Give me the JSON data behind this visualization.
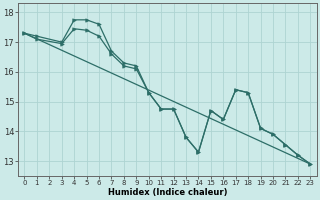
{
  "title": "",
  "xlabel": "Humidex (Indice chaleur)",
  "bg_color": "#cceae8",
  "grid_color": "#aed4d2",
  "line_color": "#2d6e68",
  "xlim": [
    -0.5,
    23.5
  ],
  "ylim": [
    12.5,
    18.3
  ],
  "yticks": [
    13,
    14,
    15,
    16,
    17,
    18
  ],
  "xticks": [
    0,
    1,
    2,
    3,
    4,
    5,
    6,
    7,
    8,
    9,
    10,
    11,
    12,
    13,
    14,
    15,
    16,
    17,
    18,
    19,
    20,
    21,
    22,
    23
  ],
  "line_top": [
    17.3,
    17.2,
    null,
    17.0,
    17.75,
    17.75,
    17.6,
    16.7,
    16.3,
    16.2,
    15.3,
    14.75,
    14.75,
    13.8,
    13.3,
    14.7,
    14.4,
    15.4,
    15.3,
    14.1,
    13.9,
    13.55,
    13.2,
    12.9
  ],
  "line_mid": [
    17.3,
    17.1,
    null,
    16.95,
    17.45,
    17.4,
    17.2,
    16.6,
    16.2,
    16.1,
    15.3,
    14.75,
    14.75,
    13.8,
    13.3,
    14.7,
    14.4,
    15.4,
    15.3,
    14.1,
    13.9,
    13.55,
    13.2,
    12.9
  ],
  "trend_x": [
    0,
    23
  ],
  "trend_y": [
    17.3,
    12.9
  ]
}
